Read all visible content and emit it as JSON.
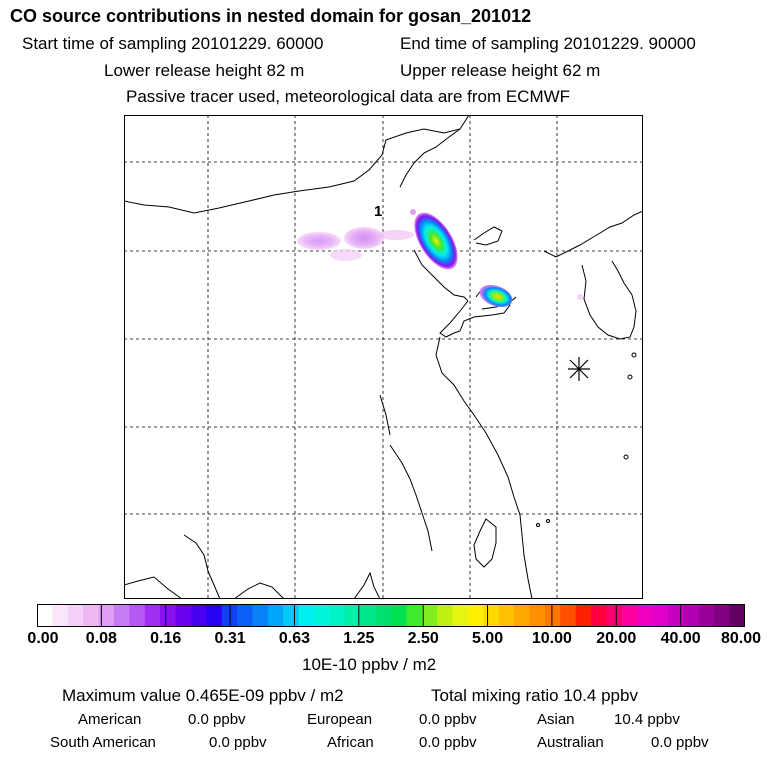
{
  "header": {
    "title": "CO  source contributions in nested domain for gosan_201012",
    "start_time": "Start time of sampling 20101229. 60000",
    "end_time": "End time of sampling 20101229. 90000",
    "lower_release": "Lower release height   82 m",
    "upper_release": "Upper release height   62 m",
    "tracer_note": "Passive tracer used, meteorological data are from ECMWF"
  },
  "map": {
    "point_label": "1",
    "receptor_marker": "asterisk-icon"
  },
  "colorbar": {
    "units": "10E-10 ppbv / m2",
    "tick_labels": [
      "0.00",
      "0.08",
      "0.16",
      "0.31",
      "0.63",
      "1.25",
      "2.50",
      "5.00",
      "10.00",
      "20.00",
      "40.00",
      "80.00"
    ],
    "colors": [
      "#ffffff",
      "#fbe6fb",
      "#f5d0f7",
      "#efb8f3",
      "#e09ef5",
      "#c87cf3",
      "#b55af0",
      "#a030ef",
      "#8a10ee",
      "#6a00f0",
      "#4800f0",
      "#2a00f2",
      "#1040f5",
      "#0a5ff7",
      "#0a80f7",
      "#00a6f7",
      "#00ccf7",
      "#00f0f0",
      "#00f5dd",
      "#00f3c5",
      "#00f0a8",
      "#00e68c",
      "#00e070",
      "#00e050",
      "#40e830",
      "#80ee20",
      "#c0f010",
      "#e8f510",
      "#fff000",
      "#ffd800",
      "#ffc000",
      "#ffa800",
      "#ff9000",
      "#ff7800",
      "#ff5000",
      "#ff2000",
      "#ff0040",
      "#ff0070",
      "#ff00a0",
      "#f000c0",
      "#e000c8",
      "#c800c0",
      "#b000b0",
      "#980098",
      "#800080",
      "#600060"
    ]
  },
  "summary": {
    "max_value": "Maximum value  0.465E-09 ppbv / m2",
    "total_mixing": "Total mixing ratio       10.4 ppbv",
    "regions": [
      {
        "name": "American",
        "value": "0.0 ppbv"
      },
      {
        "name": "European",
        "value": "0.0 ppbv"
      },
      {
        "name": "Asian",
        "value": "10.4 ppbv"
      },
      {
        "name": "South American",
        "value": "0.0 ppbv"
      },
      {
        "name": "African",
        "value": "0.0 ppbv"
      },
      {
        "name": "Australian",
        "value": "0.0 ppbv"
      }
    ]
  }
}
